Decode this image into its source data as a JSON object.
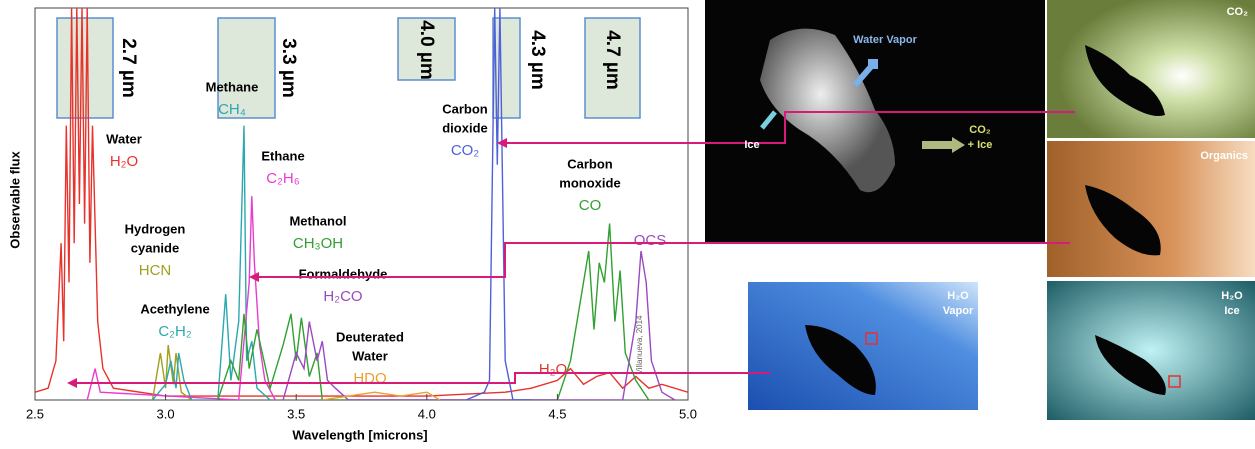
{
  "chart_data": {
    "type": "line",
    "xlabel": "Wavelength [microns]",
    "ylabel": "Observable flux",
    "credit": "Villanueva, 2014",
    "xlim": [
      2.5,
      5.0
    ],
    "ylim": [
      0,
      100
    ],
    "xticks": [
      2.5,
      {
        "value": 3,
        "label": "3.0"
      },
      3.5,
      {
        "value": 4,
        "label": "4.0"
      },
      4.5,
      {
        "value": 5,
        "label": "5.0"
      }
    ],
    "bands": [
      "2.7 µm",
      "3.3 µm",
      "4.0 µm",
      "4.3 µm",
      "4.7 µm"
    ],
    "series": [
      {
        "color": "#e8322c",
        "x": [
          2.5,
          2.55,
          2.58,
          2.6,
          2.61,
          2.62,
          2.63,
          2.64,
          2.65,
          2.66,
          2.67,
          2.68,
          2.69,
          2.7,
          2.71,
          2.72,
          2.74,
          2.76,
          2.8,
          3.0,
          3.5,
          4.0,
          4.3,
          4.4,
          4.5,
          4.55,
          4.6,
          4.65,
          4.7,
          4.75,
          4.8,
          4.85,
          4.9,
          5.0
        ],
        "values": [
          2,
          3,
          10,
          40,
          15,
          70,
          30,
          100,
          40,
          100,
          50,
          100,
          45,
          100,
          35,
          70,
          20,
          8,
          3,
          1,
          1,
          1,
          2,
          3,
          5,
          8,
          4,
          6,
          7,
          3,
          6,
          3,
          4,
          2
        ]
      },
      {
        "color": "#a0a020",
        "x": [
          2.95,
          2.98,
          3.0,
          3.01,
          3.03,
          3.04,
          3.06,
          3.1
        ],
        "values": [
          0,
          12,
          3,
          14,
          4,
          12,
          2,
          0
        ]
      },
      {
        "color": "#2aa8b0",
        "x": [
          2.95,
          3.0,
          3.02,
          3.04,
          3.05,
          3.07,
          3.1,
          3.2,
          3.23,
          3.25,
          3.28,
          3.3,
          3.31,
          3.33,
          3.35,
          3.4
        ],
        "values": [
          0,
          4,
          10,
          3,
          12,
          5,
          0,
          0,
          27,
          5,
          20,
          70,
          10,
          15,
          3,
          0
        ]
      },
      {
        "color": "#e83cd0",
        "x": [
          2.7,
          2.73,
          2.75,
          3.28,
          3.3,
          3.32,
          3.33,
          3.34,
          3.36,
          3.38,
          3.42
        ],
        "values": [
          0,
          8,
          2,
          0,
          15,
          30,
          52,
          35,
          14,
          5,
          0
        ]
      },
      {
        "color": "#30a030",
        "x": [
          3.2,
          3.25,
          3.28,
          3.3,
          3.32,
          3.35,
          3.4,
          3.45,
          3.48,
          3.5,
          3.52,
          3.55,
          3.58,
          3.6,
          4.5,
          4.55,
          4.6,
          4.62,
          4.64,
          4.66,
          4.68,
          4.7,
          4.72,
          4.74,
          4.76,
          4.8,
          4.85
        ],
        "values": [
          0,
          10,
          5,
          22,
          8,
          18,
          3,
          14,
          22,
          10,
          21,
          6,
          12,
          0,
          0,
          10,
          30,
          38,
          18,
          35,
          30,
          45,
          20,
          33,
          12,
          5,
          0
        ]
      },
      {
        "color": "#9a4ac0",
        "x": [
          3.45,
          3.5,
          3.53,
          3.55,
          3.58,
          3.6,
          3.62,
          3.65,
          3.7,
          4.75,
          4.8,
          4.82,
          4.84,
          4.86,
          4.9,
          4.95
        ],
        "values": [
          0,
          12,
          8,
          20,
          10,
          15,
          5,
          3,
          0,
          0,
          20,
          38,
          30,
          10,
          2,
          0
        ]
      },
      {
        "color": "#5060d8",
        "x": [
          4.15,
          4.22,
          4.24,
          4.26,
          4.27,
          4.28,
          4.3,
          4.33,
          4.4
        ],
        "values": [
          0,
          2,
          5,
          100,
          60,
          100,
          10,
          0,
          0
        ]
      },
      {
        "color": "#e8a030",
        "x": [
          3.6,
          3.7,
          3.8,
          3.9,
          4.0,
          4.05
        ],
        "values": [
          0,
          1,
          2,
          1,
          2,
          0
        ]
      }
    ],
    "annotations": [
      {
        "name": [
          "Water"
        ],
        "formula": "H₂O",
        "color": "#e8322c"
      },
      {
        "name": [
          "Methane"
        ],
        "formula": "CH₄",
        "color": "#2aa8b0"
      },
      {
        "name": [
          "Ethane"
        ],
        "formula": "C₂H₆",
        "color": "#e83cd0"
      },
      {
        "name": [
          "Hydrogen",
          "cyanide"
        ],
        "formula": "HCN",
        "color": "#a0a020"
      },
      {
        "name": [
          "Methanol"
        ],
        "formula": "CH₃OH",
        "color": "#30a030"
      },
      {
        "name": [
          "Formaldehyde"
        ],
        "formula": "H₂CO",
        "color": "#9a4ac0"
      },
      {
        "name": [
          "Acethylene"
        ],
        "formula": "C₂H₂",
        "color": "#2aa8b0"
      },
      {
        "name": [
          "Deuterated",
          "Water"
        ],
        "formula": "HDO",
        "color": "#e8a030"
      },
      {
        "name": [
          "Carbon",
          "dioxide"
        ],
        "formula": "CO₂",
        "color": "#5060d8"
      },
      {
        "name": [
          "Carbon",
          "monoxide"
        ],
        "formula": "CO",
        "color": "#30a030"
      },
      {
        "name": [],
        "formula": "OCS",
        "color": "#9a4ac0"
      },
      {
        "name": [],
        "formula": "H₂O",
        "color": "#e8322c"
      }
    ]
  },
  "images": {
    "labels": [
      [
        "Water Vapor"
      ],
      [
        "Ice"
      ],
      [
        "CO₂",
        "+ Ice"
      ],
      [
        "CO₂"
      ],
      [
        "Organics"
      ],
      [
        "H₂O",
        "Vapor"
      ],
      [
        "H₂O",
        "Ice"
      ]
    ]
  }
}
